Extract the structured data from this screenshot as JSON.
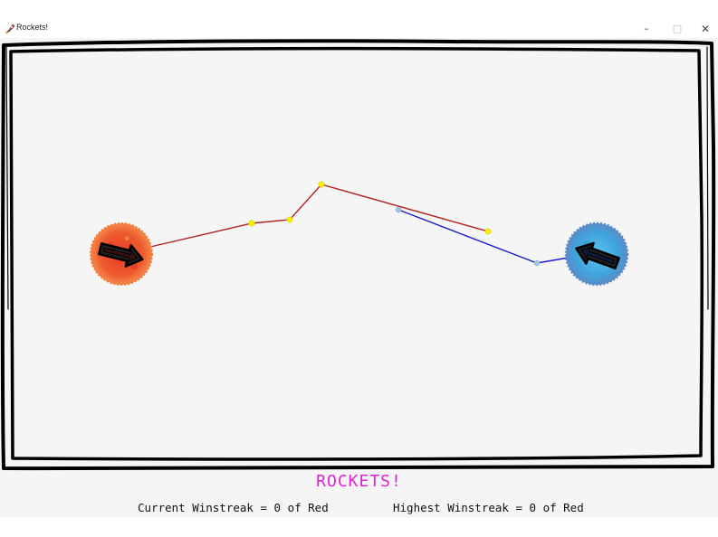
{
  "window": {
    "title": "Rockets!",
    "icon": "rocket-icon",
    "controls": {
      "minimize": "–",
      "maximize": "□",
      "close": "✕"
    }
  },
  "game": {
    "title": "ROCKETS!",
    "title_color": "#e020d8",
    "current_winstreak": "Current Winstreak = 0 of Red",
    "highest_winstreak": "Highest Winstreak = 0 of Red",
    "red_player": {
      "color": "#e8542a",
      "trail_color": "#b02020",
      "waypoint_color": "#ffee00"
    },
    "blue_player": {
      "color": "#4a9de0",
      "trail_color": "#1a1acc",
      "waypoint_color": "#9ec4e8"
    }
  }
}
